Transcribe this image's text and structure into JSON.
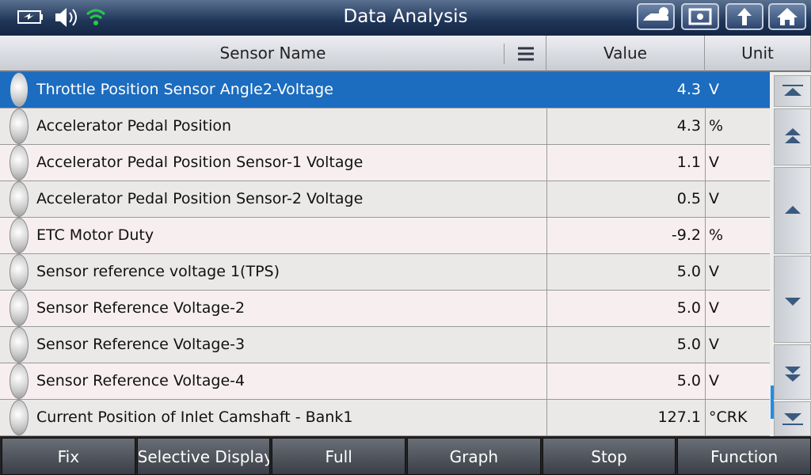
{
  "header": {
    "title": "Data Analysis"
  },
  "table": {
    "columns": [
      "Sensor Name",
      "Value",
      "Unit"
    ],
    "rows": [
      {
        "name": "Throttle Position Sensor Angle2-Voltage",
        "value": "4.3",
        "unit": "V"
      },
      {
        "name": "Accelerator Pedal Position",
        "value": "4.3",
        "unit": "%"
      },
      {
        "name": "Accelerator Pedal Position Sensor-1 Voltage",
        "value": "1.1",
        "unit": "V"
      },
      {
        "name": "Accelerator Pedal Position Sensor-2 Voltage",
        "value": "0.5",
        "unit": "V"
      },
      {
        "name": "ETC Motor Duty",
        "value": "-9.2",
        "unit": "%"
      },
      {
        "name": "Sensor reference voltage 1(TPS)",
        "value": "5.0",
        "unit": "V"
      },
      {
        "name": "Sensor Reference Voltage-2",
        "value": "5.0",
        "unit": "V"
      },
      {
        "name": "Sensor Reference Voltage-3",
        "value": "5.0",
        "unit": "V"
      },
      {
        "name": "Sensor Reference Voltage-4",
        "value": "5.0",
        "unit": "V"
      },
      {
        "name": "Current Position of Inlet Camshaft - Bank1",
        "value": "127.1",
        "unit": "°CRK"
      }
    ]
  },
  "footer": {
    "buttons": [
      "Fix",
      "Selective Display",
      "Full",
      "Graph",
      "Stop",
      "Function"
    ]
  }
}
